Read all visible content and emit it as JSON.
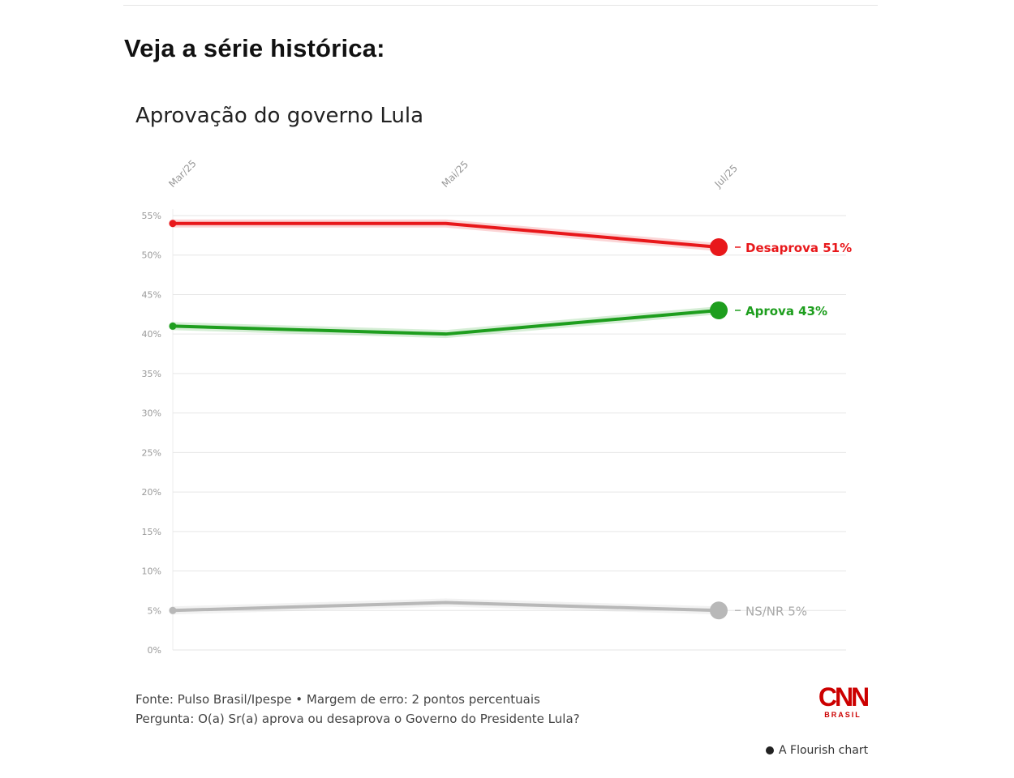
{
  "heading": "Veja a série histórica:",
  "chart_data": {
    "type": "line",
    "title": "Aprovação do governo Lula",
    "categories": [
      "Mar/25",
      "Mai/25",
      "Jul/25"
    ],
    "y_ticks": [
      "0%",
      "5%",
      "10%",
      "15%",
      "20%",
      "25%",
      "30%",
      "35%",
      "40%",
      "45%",
      "50%",
      "55%"
    ],
    "ylim": [
      0,
      55
    ],
    "grid": true,
    "legend": "end-of-line labels",
    "series": [
      {
        "name": "Desaprova",
        "end_label": "Desaprova 51%",
        "color": "#e8181b",
        "values": [
          54,
          54,
          51
        ]
      },
      {
        "name": "Aprova",
        "end_label": "Aprova 43%",
        "color": "#1e9e1e",
        "values": [
          41,
          40,
          43
        ]
      },
      {
        "name": "NS/NR",
        "end_label": "NS/NR 5%",
        "color": "#b8b8b8",
        "values": [
          5,
          6,
          5
        ]
      }
    ]
  },
  "footer": {
    "source": "Fonte: Pulso Brasil/Ipespe • Margem de erro: 2 pontos percentuais",
    "question": "Pergunta: O(a) Sr(a) aprova ou desaprova o Governo do Presidente Lula?"
  },
  "logo": {
    "main": "CNN",
    "sub": "BRASIL"
  },
  "credit": "A Flourish chart",
  "colors": {
    "grid": "#e6e6e6",
    "tick_text": "#999999"
  }
}
